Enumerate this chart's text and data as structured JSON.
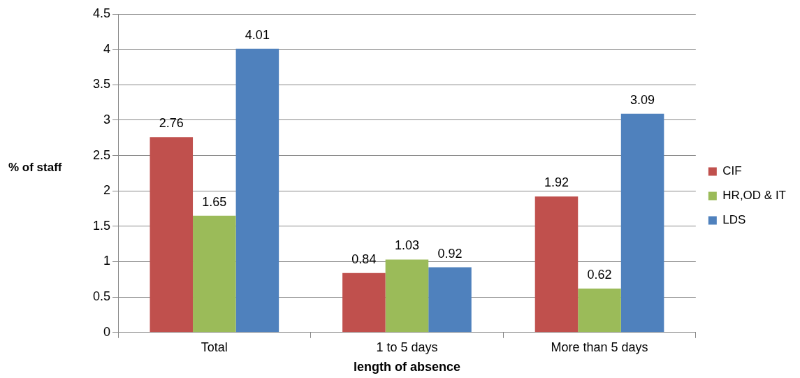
{
  "chart_data": {
    "type": "bar",
    "xlabel": "length of absence",
    "ylabel": "% of staff",
    "categories": [
      "Total",
      "1 to 5 days",
      "More than 5 days"
    ],
    "series": [
      {
        "name": "CIF",
        "color": "#c0504d",
        "values": [
          2.76,
          0.84,
          1.92
        ]
      },
      {
        "name": "HR,OD & IT",
        "color": "#9bbb59",
        "values": [
          1.65,
          1.03,
          0.62
        ]
      },
      {
        "name": "LDS",
        "color": "#4f81bd",
        "values": [
          4.01,
          0.92,
          3.09
        ]
      }
    ],
    "ylim": [
      0,
      4.5
    ],
    "yticks": [
      0,
      0.5,
      1,
      1.5,
      2,
      2.5,
      3,
      3.5,
      4,
      4.5
    ],
    "grid": "y",
    "legend": "right",
    "data_labels": true
  }
}
